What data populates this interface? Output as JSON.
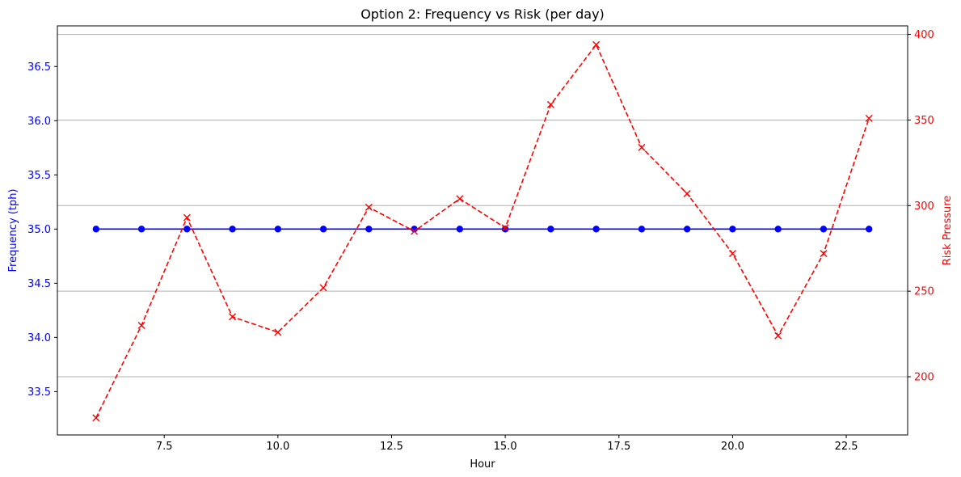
{
  "chart_data": {
    "type": "line",
    "title": "Option 2: Frequency vs Risk (per day)",
    "xlabel": "Hour",
    "ylabel_left": "Frequency (tph)",
    "ylabel_right": "Risk Pressure",
    "xlim": [
      5.15,
      23.85
    ],
    "ylim_left": [
      33.1,
      36.875
    ],
    "ylim_right": [
      166,
      405
    ],
    "x_ticks": [
      7.5,
      10.0,
      12.5,
      15.0,
      17.5,
      20.0,
      22.5
    ],
    "x_tick_labels": [
      "7.5",
      "10.0",
      "12.5",
      "15.0",
      "17.5",
      "20.0",
      "22.5"
    ],
    "y_left_ticks": [
      33.5,
      34.0,
      34.5,
      35.0,
      35.5,
      36.0,
      36.5
    ],
    "y_left_tick_labels": [
      "33.5",
      "34.0",
      "34.5",
      "35.0",
      "35.5",
      "36.0",
      "36.5"
    ],
    "y_right_ticks": [
      200,
      250,
      300,
      350,
      400
    ],
    "y_right_tick_labels": [
      "200",
      "250",
      "300",
      "350",
      "400"
    ],
    "grid": "horizontal lines at right-axis ticks",
    "colors": {
      "left_axis": "#0000ff",
      "right_axis": "#ff0000",
      "grid": "#b0b0b0",
      "frame": "#000000"
    },
    "series": [
      {
        "axis": "left",
        "style": "solid line with circle markers",
        "color": "#0000ff",
        "x": [
          6,
          7,
          8,
          9,
          10,
          11,
          12,
          13,
          14,
          15,
          16,
          17,
          18,
          19,
          20,
          21,
          22,
          23
        ],
        "y": [
          35,
          35,
          35,
          35,
          35,
          35,
          35,
          35,
          35,
          35,
          35,
          35,
          35,
          35,
          35,
          35,
          35,
          35
        ]
      },
      {
        "axis": "right",
        "style": "dashed line with x markers",
        "color": "#ff0000",
        "x": [
          6,
          7,
          8,
          9,
          10,
          11,
          12,
          13,
          14,
          15,
          16,
          17,
          18,
          19,
          20,
          21,
          22,
          23
        ],
        "y": [
          176,
          230,
          293,
          235,
          226,
          252,
          299,
          285,
          304,
          287,
          359,
          394,
          334,
          307,
          272,
          224,
          272,
          351
        ]
      }
    ]
  }
}
